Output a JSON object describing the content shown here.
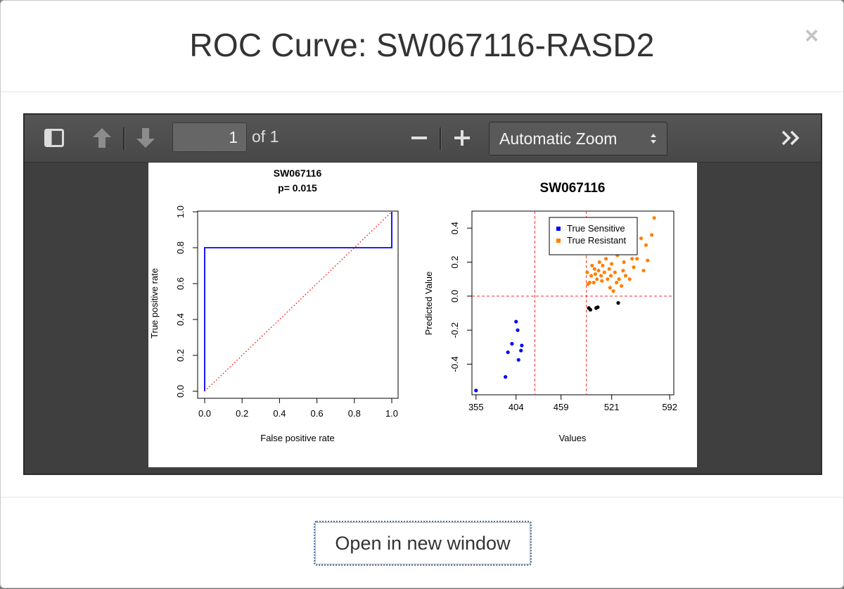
{
  "modal": {
    "title": "ROC Curve: SW067116-RASD2",
    "close_label": "×"
  },
  "pdf_viewer": {
    "page_number": "1",
    "page_of": "of 1",
    "zoom_label": "Automatic Zoom",
    "icons": {
      "sidebar": "sidebar-toggle-icon",
      "prev": "arrow-up-icon",
      "next": "arrow-down-icon",
      "zoom_out": "minus-icon",
      "zoom_in": "plus-icon",
      "tools": "double-chevron-right-icon"
    }
  },
  "footer": {
    "open_button_label": "Open in new window"
  },
  "chart_data": [
    {
      "type": "line",
      "title": "SW067116",
      "subtitle": "p= 0.015",
      "xlabel": "False positive rate",
      "ylabel": "True positive rate",
      "xlim": [
        0,
        1
      ],
      "ylim": [
        0,
        1
      ],
      "xticks": [
        "0.0",
        "0.2",
        "0.4",
        "0.6",
        "0.8",
        "1.0"
      ],
      "yticks": [
        "0.0",
        "0.2",
        "0.4",
        "0.6",
        "0.8",
        "1.0"
      ],
      "series": [
        {
          "style": "solid",
          "color": "#0000ff",
          "x": [
            0,
            0,
            1,
            1
          ],
          "y": [
            0,
            0.8,
            0.8,
            1
          ]
        },
        {
          "style": "dotted",
          "color": "#ff0000",
          "x": [
            0,
            1
          ],
          "y": [
            0,
            1
          ]
        }
      ]
    },
    {
      "type": "scatter",
      "title": "SW067116",
      "xlabel": "Values",
      "ylabel": "Predicted Value",
      "xlim": [
        350,
        597
      ],
      "ylim": [
        -0.58,
        0.5
      ],
      "xticks": [
        "355",
        "404",
        "459",
        "521",
        "592"
      ],
      "yticks": [
        "-0.4",
        "-0.2",
        "0.0",
        "0.2",
        "0.4"
      ],
      "legend": {
        "position": "top-left",
        "entries": [
          "True Sensitive",
          "True Resistant"
        ]
      },
      "reference_lines": {
        "vertical": [
          427,
          490
        ],
        "horizontal": [
          0
        ]
      },
      "series": [
        {
          "name": "True Sensitive",
          "color": "#0000ff",
          "points": [
            [
              355,
              -0.555
            ],
            [
              391,
              -0.475
            ],
            [
              394,
              -0.33
            ],
            [
              399,
              -0.28
            ],
            [
              404,
              -0.15
            ],
            [
              406,
              -0.2
            ],
            [
              407,
              -0.375
            ],
            [
              410,
              -0.32
            ],
            [
              411,
              -0.29
            ]
          ]
        },
        {
          "name": "True Resistant",
          "color": "#ff8000",
          "points": [
            [
              491,
              0.14
            ],
            [
              492,
              0.07
            ],
            [
              494,
              0.08
            ],
            [
              496,
              0.12
            ],
            [
              497,
              0.18
            ],
            [
              499,
              0.08
            ],
            [
              500,
              0.16
            ],
            [
              501,
              0.13
            ],
            [
              503,
              0.1
            ],
            [
              505,
              0.15
            ],
            [
              506,
              0.2
            ],
            [
              508,
              0.12
            ],
            [
              509,
              0.09
            ],
            [
              510,
              0.18
            ],
            [
              512,
              0.14
            ],
            [
              514,
              0.22
            ],
            [
              516,
              0.1
            ],
            [
              518,
              0.16
            ],
            [
              519,
              0.05
            ],
            [
              520,
              0.12
            ],
            [
              521,
              0.19
            ],
            [
              523,
              0.03
            ],
            [
              525,
              0.14
            ],
            [
              527,
              0.08
            ],
            [
              528,
              0.24
            ],
            [
              530,
              0.1
            ],
            [
              531,
              0.33
            ],
            [
              532,
              0.28
            ],
            [
              533,
              0.06
            ],
            [
              535,
              0.15
            ],
            [
              536,
              0.2
            ],
            [
              538,
              0.12
            ],
            [
              540,
              0.34
            ],
            [
              541,
              0.27
            ],
            [
              543,
              0.1
            ],
            [
              546,
              0.22
            ],
            [
              548,
              0.17
            ],
            [
              552,
              0.22
            ],
            [
              557,
              0.34
            ],
            [
              560,
              0.15
            ],
            [
              563,
              0.3
            ],
            [
              570,
              0.36
            ],
            [
              573,
              0.46
            ],
            [
              565,
              0.21
            ]
          ]
        },
        {
          "name": "",
          "color": "#000000",
          "points": [
            [
              493,
              -0.07
            ],
            [
              495,
              -0.08
            ],
            [
              502,
              -0.07
            ],
            [
              504,
              -0.065
            ],
            [
              529,
              -0.04
            ]
          ]
        }
      ]
    }
  ]
}
